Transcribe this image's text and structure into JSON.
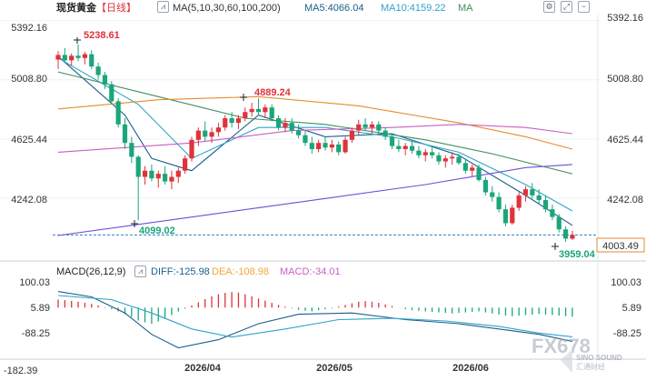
{
  "header": {
    "instrument": "现货黄金",
    "period": "【日线】",
    "ma_params": "MA(5,10,30,60,100,200)",
    "ma5": "MA5:4066.04",
    "ma10": "MA10:4159.22",
    "ma_extra": "MA"
  },
  "macd_header": {
    "params": "MACD(26,12,9)",
    "diff": "DIFF:-125.98",
    "dea": "DEA:-108.98",
    "macd": "MACD:-34.01"
  },
  "price_axis": [
    "5392.16",
    "5008.80",
    "4625.44",
    "4242.08"
  ],
  "current_price": "4003.49",
  "macd_axis": [
    "100.03",
    "5.89",
    "-88.25"
  ],
  "bottom_axis": {
    "left_value": "-182.39",
    "dates": [
      "2026/04",
      "2026/05",
      "2026/06"
    ]
  },
  "annotations": {
    "high": "5238.61",
    "mid_high": "4889.24",
    "low1": "4099.02",
    "low2": "3959.04"
  },
  "watermark": {
    "text": "FX678",
    "sub": "SINO SOUND",
    "sub2": "汇通财经"
  },
  "colors": {
    "up": "#e0323a",
    "down": "#1aa67a",
    "ma5": "#1b5e8c",
    "ma10": "#2fa4c7",
    "ma30": "#3f8f5c",
    "ma60": "#e98a2c",
    "ma100": "#c85fc2",
    "ma200": "#6a52d6",
    "dea": "#f0a63a",
    "accent": "#e0323a"
  },
  "chart_data": {
    "type": "candlestick",
    "y_range": [
      3900,
      5420
    ],
    "macd_range": [
      -182.39,
      130
    ],
    "candles": [
      [
        5140,
        5195,
        5080,
        5170
      ],
      [
        5170,
        5215,
        5120,
        5135
      ],
      [
        5135,
        5180,
        5100,
        5165
      ],
      [
        5165,
        5238.61,
        5130,
        5150
      ],
      [
        5150,
        5190,
        5110,
        5175
      ],
      [
        5175,
        5200,
        5080,
        5095
      ],
      [
        5095,
        5120,
        5010,
        5040
      ],
      [
        5040,
        5060,
        4950,
        4980
      ],
      [
        4980,
        5000,
        4850,
        4870
      ],
      [
        4870,
        4890,
        4700,
        4720
      ],
      [
        4720,
        4760,
        4560,
        4600
      ],
      [
        4600,
        4640,
        4470,
        4510
      ],
      [
        4510,
        4520,
        4099.02,
        4380
      ],
      [
        4380,
        4450,
        4330,
        4420
      ],
      [
        4420,
        4460,
        4350,
        4370
      ],
      [
        4370,
        4420,
        4310,
        4400
      ],
      [
        4400,
        4450,
        4330,
        4350
      ],
      [
        4350,
        4420,
        4300,
        4380
      ],
      [
        4380,
        4440,
        4340,
        4420
      ],
      [
        4420,
        4520,
        4400,
        4500
      ],
      [
        4500,
        4640,
        4480,
        4620
      ],
      [
        4620,
        4700,
        4580,
        4680
      ],
      [
        4680,
        4740,
        4610,
        4640
      ],
      [
        4640,
        4700,
        4600,
        4670
      ],
      [
        4670,
        4730,
        4640,
        4700
      ],
      [
        4700,
        4780,
        4680,
        4760
      ],
      [
        4760,
        4800,
        4700,
        4730
      ],
      [
        4730,
        4780,
        4690,
        4760
      ],
      [
        4760,
        4830,
        4740,
        4800
      ],
      [
        4800,
        4860,
        4770,
        4820
      ],
      [
        4820,
        4889.24,
        4780,
        4800
      ],
      [
        4800,
        4850,
        4760,
        4830
      ],
      [
        4830,
        4850,
        4740,
        4760
      ],
      [
        4760,
        4780,
        4680,
        4700
      ],
      [
        4700,
        4760,
        4670,
        4730
      ],
      [
        4730,
        4760,
        4660,
        4680
      ],
      [
        4680,
        4720,
        4630,
        4650
      ],
      [
        4650,
        4680,
        4580,
        4600
      ],
      [
        4600,
        4640,
        4530,
        4560
      ],
      [
        4560,
        4620,
        4540,
        4600
      ],
      [
        4600,
        4640,
        4550,
        4570
      ],
      [
        4570,
        4620,
        4540,
        4590
      ],
      [
        4590,
        4610,
        4520,
        4540
      ],
      [
        4540,
        4640,
        4530,
        4620
      ],
      [
        4620,
        4700,
        4600,
        4680
      ],
      [
        4680,
        4750,
        4650,
        4720
      ],
      [
        4720,
        4760,
        4680,
        4700
      ],
      [
        4700,
        4740,
        4660,
        4720
      ],
      [
        4720,
        4740,
        4660,
        4680
      ],
      [
        4680,
        4700,
        4620,
        4640
      ],
      [
        4640,
        4660,
        4560,
        4580
      ],
      [
        4580,
        4620,
        4540,
        4560
      ],
      [
        4560,
        4600,
        4520,
        4580
      ],
      [
        4580,
        4620,
        4530,
        4550
      ],
      [
        4550,
        4580,
        4500,
        4520
      ],
      [
        4520,
        4560,
        4480,
        4540
      ],
      [
        4540,
        4580,
        4500,
        4520
      ],
      [
        4520,
        4540,
        4460,
        4480
      ],
      [
        4480,
        4520,
        4440,
        4500
      ],
      [
        4500,
        4540,
        4460,
        4510
      ],
      [
        4510,
        4530,
        4460,
        4470
      ],
      [
        4470,
        4500,
        4400,
        4420
      ],
      [
        4420,
        4460,
        4380,
        4440
      ],
      [
        4440,
        4460,
        4350,
        4360
      ],
      [
        4360,
        4380,
        4260,
        4280
      ],
      [
        4280,
        4320,
        4220,
        4250
      ],
      [
        4250,
        4280,
        4150,
        4170
      ],
      [
        4170,
        4200,
        4060,
        4080
      ],
      [
        4080,
        4200,
        4070,
        4180
      ],
      [
        4180,
        4280,
        4160,
        4260
      ],
      [
        4260,
        4320,
        4220,
        4300
      ],
      [
        4300,
        4340,
        4240,
        4260
      ],
      [
        4260,
        4300,
        4200,
        4230
      ],
      [
        4230,
        4260,
        4150,
        4170
      ],
      [
        4170,
        4200,
        4100,
        4120
      ],
      [
        4120,
        4140,
        4020,
        4040
      ],
      [
        4040,
        4060,
        3959.04,
        3980
      ],
      [
        3980,
        4030,
        3970,
        4003.49
      ]
    ],
    "ma_series": [
      {
        "name": "MA5",
        "values": [
          [
            0,
            5160
          ],
          [
            10,
            4780
          ],
          [
            14,
            4500
          ],
          [
            20,
            4420
          ],
          [
            30,
            4780
          ],
          [
            40,
            4640
          ],
          [
            50,
            4660
          ],
          [
            60,
            4520
          ],
          [
            70,
            4260
          ],
          [
            77,
            4066
          ]
        ]
      },
      {
        "name": "MA10",
        "values": [
          [
            0,
            5150
          ],
          [
            12,
            4850
          ],
          [
            20,
            4500
          ],
          [
            30,
            4700
          ],
          [
            40,
            4700
          ],
          [
            50,
            4640
          ],
          [
            60,
            4540
          ],
          [
            70,
            4330
          ],
          [
            77,
            4159
          ]
        ]
      },
      {
        "name": "MA30",
        "values": [
          [
            0,
            5060
          ],
          [
            15,
            4900
          ],
          [
            28,
            4760
          ],
          [
            40,
            4720
          ],
          [
            55,
            4620
          ],
          [
            65,
            4530
          ],
          [
            77,
            4400
          ]
        ]
      },
      {
        "name": "MA60",
        "values": [
          [
            0,
            4820
          ],
          [
            15,
            4880
          ],
          [
            30,
            4900
          ],
          [
            45,
            4840
          ],
          [
            60,
            4730
          ],
          [
            70,
            4640
          ],
          [
            77,
            4560
          ]
        ]
      },
      {
        "name": "MA100",
        "values": [
          [
            0,
            4540
          ],
          [
            20,
            4600
          ],
          [
            35,
            4680
          ],
          [
            50,
            4700
          ],
          [
            60,
            4720
          ],
          [
            70,
            4700
          ],
          [
            77,
            4660
          ]
        ]
      },
      {
        "name": "MA200",
        "values": [
          [
            0,
            4000
          ],
          [
            20,
            4120
          ],
          [
            40,
            4240
          ],
          [
            55,
            4330
          ],
          [
            70,
            4440
          ],
          [
            77,
            4460
          ]
        ]
      }
    ],
    "macd": {
      "dif": [
        [
          0,
          60
        ],
        [
          5,
          40
        ],
        [
          10,
          -20
        ],
        [
          14,
          -100
        ],
        [
          18,
          -150
        ],
        [
          24,
          -120
        ],
        [
          30,
          -60
        ],
        [
          36,
          -25
        ],
        [
          44,
          -20
        ],
        [
          52,
          -45
        ],
        [
          60,
          -60
        ],
        [
          66,
          -80
        ],
        [
          72,
          -100
        ],
        [
          77,
          -126
        ]
      ],
      "dea": [
        [
          0,
          45
        ],
        [
          8,
          30
        ],
        [
          14,
          -20
        ],
        [
          20,
          -80
        ],
        [
          26,
          -110
        ],
        [
          34,
          -80
        ],
        [
          42,
          -45
        ],
        [
          50,
          -40
        ],
        [
          58,
          -50
        ],
        [
          66,
          -70
        ],
        [
          72,
          -95
        ],
        [
          77,
          -109
        ]
      ],
      "hist": [
        30,
        28,
        25,
        22,
        18,
        14,
        8,
        2,
        -6,
        -14,
        -25,
        -35,
        -48,
        -55,
        -60,
        -52,
        -40,
        -28,
        -15,
        -4,
        8,
        20,
        32,
        42,
        50,
        55,
        58,
        56,
        50,
        42,
        34,
        26,
        18,
        10,
        4,
        -2,
        -8,
        -12,
        -14,
        -10,
        -6,
        -2,
        4,
        10,
        16,
        22,
        24,
        22,
        18,
        12,
        6,
        0,
        -6,
        -10,
        -12,
        -14,
        -16,
        -18,
        -20,
        -22,
        -20,
        -18,
        -16,
        -14,
        -18,
        -22,
        -26,
        -30,
        -32,
        -30,
        -28,
        -26,
        -24,
        -26,
        -28,
        -30,
        -32,
        -34
      ]
    }
  }
}
